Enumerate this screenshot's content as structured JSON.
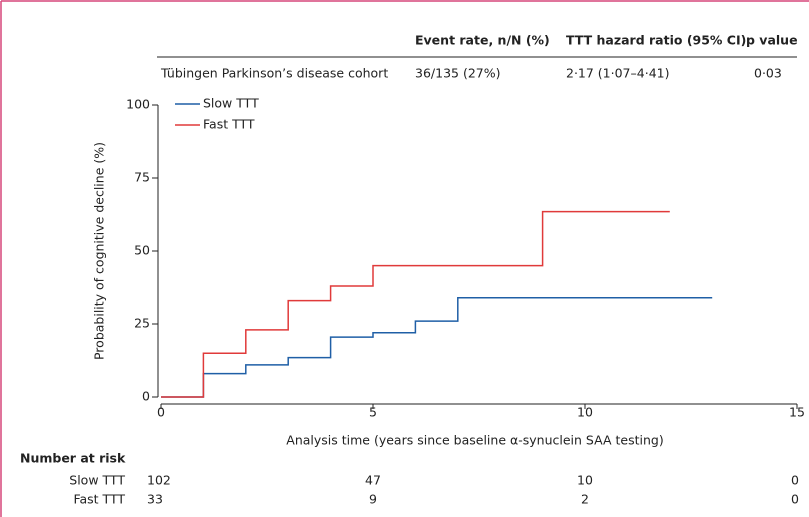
{
  "chart_data": {
    "type": "step",
    "header_table": {
      "columns": [
        "Event rate, n/N (%)",
        "TTT hazard ratio (95% CI)",
        "p value"
      ],
      "row": [
        "Tübingen Parkinson’s disease cohort",
        "36/135 (27%)",
        "2·17 (1·07–4·41)",
        "0·03"
      ]
    },
    "xlabel": "Analysis time (years since baseline α-synuclein SAA testing)",
    "ylabel": "Probability of cognitive decline (%)",
    "xlim": [
      0,
      15
    ],
    "xticks": [
      0,
      5,
      10,
      15
    ],
    "ylim": [
      0,
      100
    ],
    "yticks": [
      0,
      25,
      50,
      75,
      100
    ],
    "legend": "top-left",
    "series": [
      {
        "name": "Slow TTT",
        "color": "#1f5fa6",
        "x": [
          0,
          1,
          2,
          3,
          4,
          5,
          6,
          7,
          13
        ],
        "values": [
          0,
          8,
          11,
          13.5,
          20.5,
          22,
          26,
          34,
          34
        ]
      },
      {
        "name": "Fast TTT",
        "color": "#e03a3a",
        "x": [
          0,
          1,
          2,
          3,
          4,
          5,
          9,
          12
        ],
        "values": [
          0,
          15,
          23,
          33,
          38,
          45,
          63.5,
          63.5
        ]
      }
    ],
    "risk_table": {
      "title": "Number at risk",
      "rows": [
        {
          "name": "Slow TTT",
          "values": [
            102,
            47,
            10,
            0
          ]
        },
        {
          "name": "Fast TTT",
          "values": [
            33,
            9,
            2,
            0
          ]
        }
      ]
    }
  }
}
